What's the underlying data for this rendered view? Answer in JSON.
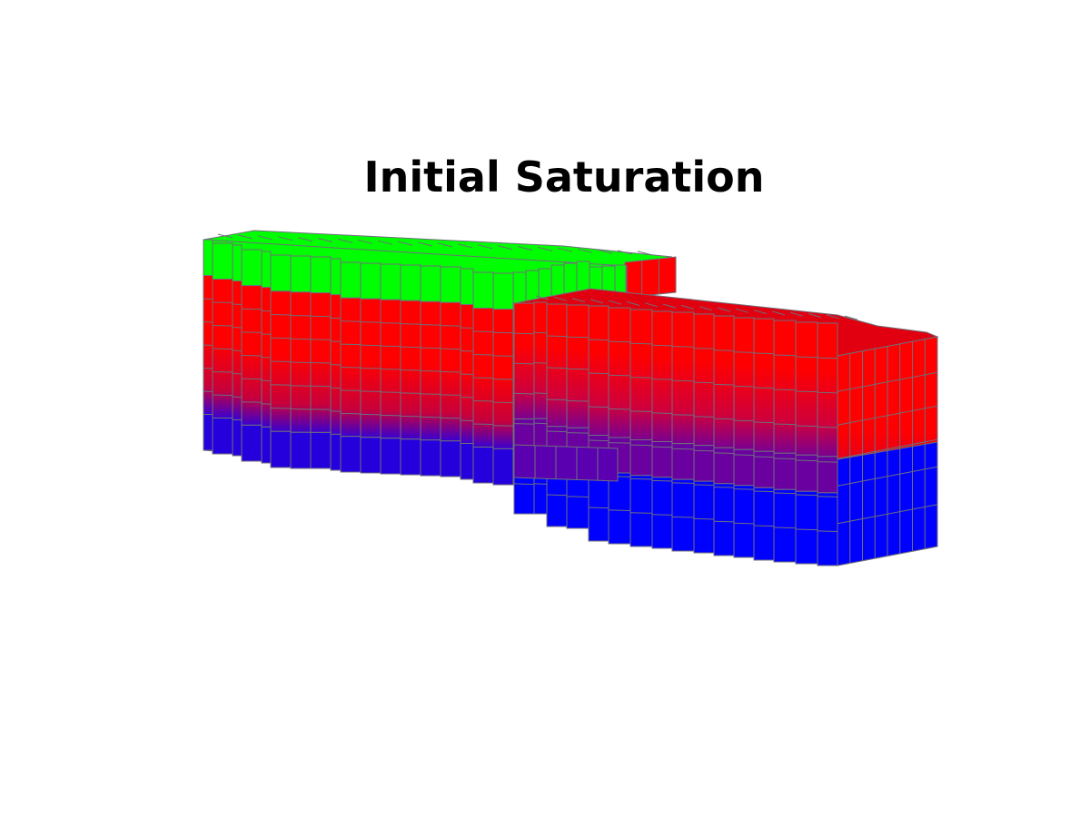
{
  "figure": {
    "title": "Initial Saturation"
  },
  "colors": {
    "top_phase": "#00ff00",
    "middle_phase": "#ff0000",
    "bottom_phase": "#0000ff",
    "cell_edge": "#6f6f7a",
    "background": "#ffffff"
  },
  "phases": [
    {
      "name": "top",
      "color": "#00ff00"
    },
    {
      "name": "middle",
      "color": "#ff0000"
    },
    {
      "name": "bottom",
      "color": "#0000ff"
    }
  ]
}
